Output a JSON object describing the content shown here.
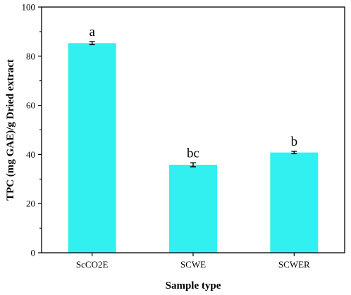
{
  "chart_data": {
    "type": "bar",
    "categories": [
      "ScCO2E",
      "SCWE",
      "SCWER"
    ],
    "values": [
      85.3,
      35.8,
      40.8
    ],
    "errors": [
      0.6,
      0.8,
      0.5
    ],
    "significance_labels": [
      "a",
      "bc",
      "b"
    ],
    "xlabel": "Sample type",
    "ylabel": "TPC (mg GAE)/g Dried extract",
    "ylim": [
      0,
      100
    ],
    "yticks": [
      0,
      20,
      40,
      60,
      80,
      100
    ],
    "grid": false,
    "bar_color": "#33f0f0",
    "error_bar_color": "#000000"
  }
}
